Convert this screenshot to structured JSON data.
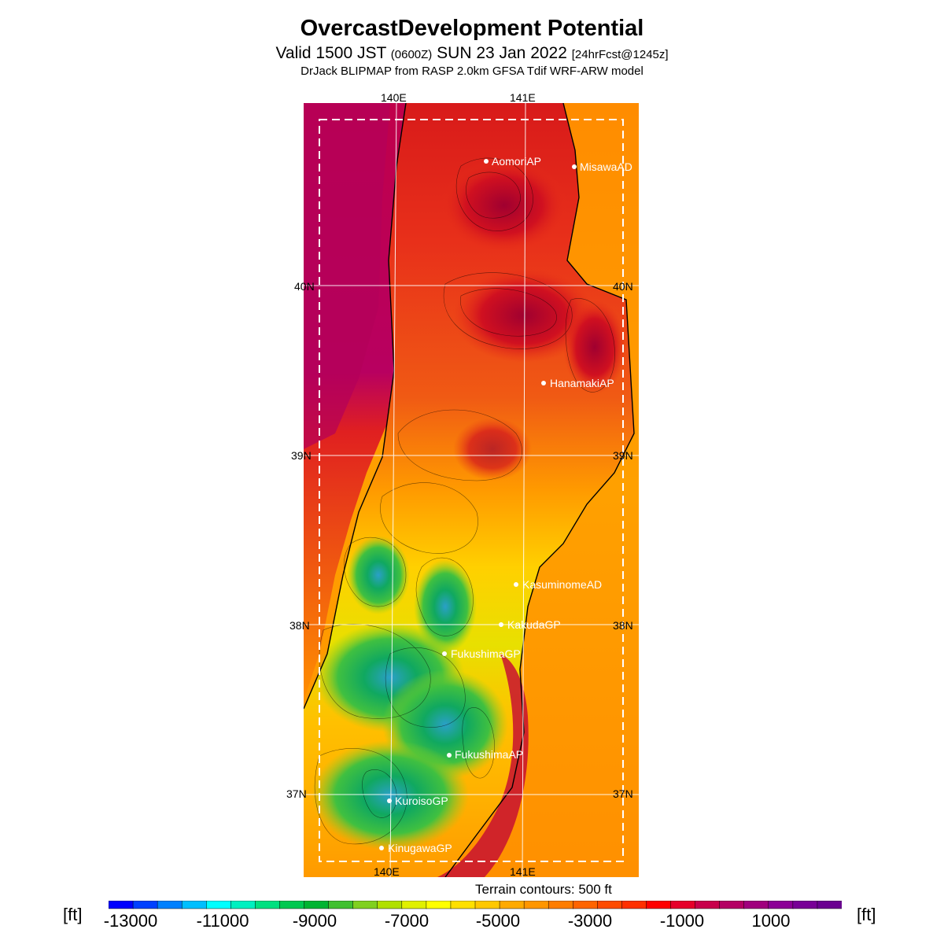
{
  "title": "OvercastDevelopment Potential",
  "valid": {
    "prefix": "Valid 1500 JST",
    "utc": "(0600Z)",
    "date": "SUN 23 Jan 2022",
    "forecast": "[24hrFcst@1245z]"
  },
  "model_line": "DrJack BLIPMAP from RASP 2.0km GFSA Tdif WRF-ARW model",
  "axes": {
    "lon_top": [
      "140E",
      "141E"
    ],
    "lon_bottom": [
      "140E",
      "141E"
    ],
    "lat_left": [
      "40N",
      "39N",
      "38N",
      "37N"
    ],
    "lat_right": [
      "40N",
      "39N",
      "38N",
      "37N"
    ]
  },
  "stations": [
    "AomoriAP",
    "MisawaAD",
    "HanamakiAP",
    "KasuminomeAD",
    "KakudaGP",
    "FukushimaGP",
    "FukushimaAP",
    "KuroisoGP",
    "KinugawaGP"
  ],
  "terrain_note": "Terrain contours: 500 ft",
  "colorbar": {
    "unit": "[ft]",
    "ticks": [
      "-13000",
      "-11000",
      "-9000",
      "-7000",
      "-5000",
      "-3000",
      "-1000",
      "1000"
    ],
    "colors": [
      "#0000ff",
      "#0040ff",
      "#0080ff",
      "#00bfff",
      "#00ffff",
      "#00f0c0",
      "#00e080",
      "#00c850",
      "#00b432",
      "#40c030",
      "#80d020",
      "#b0e000",
      "#e0f000",
      "#ffff00",
      "#ffe000",
      "#ffc800",
      "#ffaa00",
      "#ff9600",
      "#ff7d00",
      "#ff6400",
      "#ff4b00",
      "#ff3000",
      "#ff0000",
      "#e6002a",
      "#c8004b",
      "#b40064",
      "#a0007d",
      "#8c0096",
      "#780096",
      "#6a0090"
    ]
  }
}
